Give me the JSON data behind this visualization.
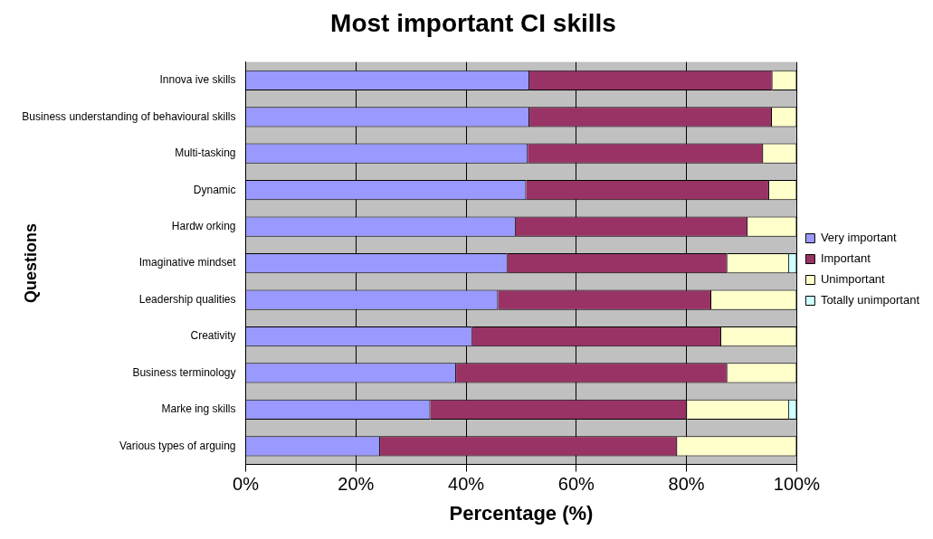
{
  "chart_data": {
    "type": "bar",
    "orientation": "horizontal",
    "stacked": true,
    "title": "Most important CI skills",
    "xlabel": "Percentage (%)",
    "ylabel": "Questions",
    "categories": [
      "Innova ive skills",
      "Business understanding of behavioural skills",
      "Multi-tasking",
      "Dynamic",
      "Hardw orking",
      "Imaginative mindset",
      "Leadership qualities",
      "Creativity",
      "Business terminology",
      "Marke ing skills",
      "Various types of arguing"
    ],
    "series": [
      {
        "name": "Very important",
        "color": "#9999ff",
        "values": [
          51.5,
          51.5,
          51.2,
          50.9,
          49.0,
          47.5,
          45.8,
          41.1,
          38.2,
          33.5,
          24.4
        ]
      },
      {
        "name": "Important",
        "color": "#993366",
        "values": [
          44.1,
          44.0,
          42.7,
          44.1,
          42.1,
          39.9,
          38.7,
          45.2,
          49.2,
          46.6,
          53.9
        ]
      },
      {
        "name": "Unimportant",
        "color": "#ffffcc",
        "values": [
          4.4,
          4.5,
          6.1,
          5.0,
          8.9,
          11.2,
          15.5,
          13.7,
          12.6,
          18.5,
          21.7
        ]
      },
      {
        "name": "Totally unimportant",
        "color": "#ccffff",
        "values": [
          0,
          0,
          0,
          0,
          0,
          1.4,
          0,
          0,
          0,
          1.4,
          0
        ]
      }
    ],
    "xlim": [
      0,
      100
    ],
    "xticks": [
      {
        "value": 0,
        "label": "0%"
      },
      {
        "value": 20,
        "label": "20%"
      },
      {
        "value": 40,
        "label": "40%"
      },
      {
        "value": 60,
        "label": "60%"
      },
      {
        "value": 80,
        "label": "80%"
      },
      {
        "value": 100,
        "label": "100%"
      }
    ],
    "grid": "x",
    "legend": "right"
  }
}
